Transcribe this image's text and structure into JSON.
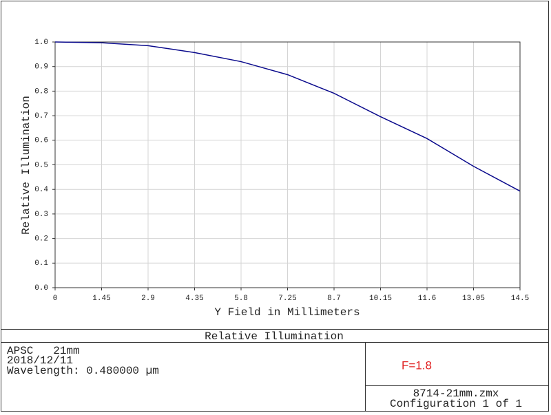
{
  "chart_data": {
    "type": "line",
    "xlabel": "Y Field in Millimeters",
    "ylabel": "Relative Illumination",
    "x": [
      0,
      1.45,
      2.9,
      4.35,
      5.8,
      7.25,
      8.7,
      10.15,
      11.6,
      13.05,
      14.5
    ],
    "series": [
      {
        "color": "#0a0a8c",
        "values": [
          1.0,
          0.997,
          0.985,
          0.957,
          0.92,
          0.867,
          0.791,
          0.696,
          0.607,
          0.494,
          0.393
        ]
      }
    ],
    "xlim": [
      0,
      14.5
    ],
    "ylim": [
      0,
      1
    ],
    "xticks": [
      0,
      1.45,
      2.9,
      4.35,
      5.8,
      7.25,
      8.7,
      10.15,
      11.6,
      13.05,
      14.5
    ],
    "yticks": [
      {
        "value": 0,
        "label": "0.0"
      },
      0.1,
      0.2,
      0.3,
      0.4,
      0.5,
      0.6,
      0.7,
      0.8,
      0.9,
      {
        "value": 1,
        "label": "1.0"
      }
    ],
    "grid": true
  },
  "footer": {
    "title": "Relative Illumination",
    "info": [
      "APSC   21mm",
      "2018/12/11",
      "Wavelength: 0.480000 µm"
    ],
    "annotation": "F=1.8",
    "file": "8714-21mm.zmx",
    "config": "Configuration 1 of 1"
  }
}
